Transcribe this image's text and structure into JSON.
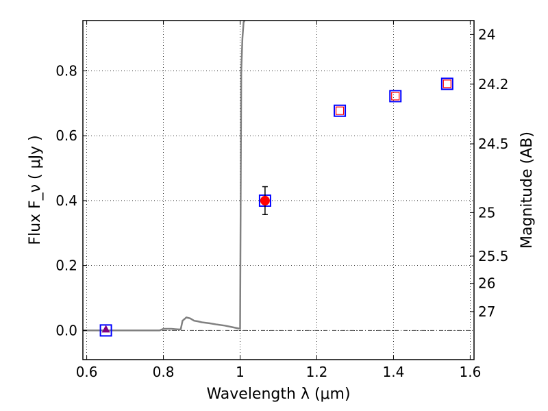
{
  "chart_data": {
    "type": "scatter",
    "xlabel": "Wavelength  λ (μm)",
    "ylabel": "Flux  F_ν  ( μJy )",
    "ylabel_right": "Magnitude (AB)",
    "xlim": [
      0.59,
      1.61
    ],
    "ylim": [
      -0.09,
      0.955
    ],
    "grid": true,
    "x_ticks": [
      0.6,
      0.8,
      1.0,
      1.2,
      1.4,
      1.6
    ],
    "x_tick_labels": [
      "0.6",
      "0.8",
      "1",
      "1.2",
      "1.4",
      "1.6"
    ],
    "y_ticks": [
      0.0,
      0.2,
      0.4,
      0.6,
      0.8
    ],
    "y_tick_labels": [
      "0.0",
      "0.2",
      "0.4",
      "0.6",
      "0.8"
    ],
    "right_ticks": [
      {
        "label": "24",
        "flux": 0.912
      },
      {
        "label": "24.2",
        "flux": 0.759
      },
      {
        "label": "24.5",
        "flux": 0.575
      },
      {
        "label": "25",
        "flux": 0.363
      },
      {
        "label": "25.5",
        "flux": 0.229
      },
      {
        "label": "26",
        "flux": 0.145
      },
      {
        "label": "27",
        "flux": 0.058
      }
    ],
    "zero_line": 0.0,
    "sed_model": {
      "color": "#808080",
      "x": [
        0.59,
        0.65,
        0.7,
        0.75,
        0.79,
        0.8,
        0.82,
        0.84,
        0.845,
        0.85,
        0.86,
        0.87,
        0.88,
        0.89,
        0.9,
        0.92,
        0.94,
        0.96,
        0.98,
        1.0,
        1.003,
        1.006,
        1.009,
        1.012
      ],
      "y": [
        0.0,
        0.0,
        0.0,
        0.0,
        0.0,
        0.005,
        0.005,
        0.003,
        0.003,
        0.03,
        0.04,
        0.037,
        0.03,
        0.028,
        0.025,
        0.022,
        0.018,
        0.015,
        0.01,
        0.005,
        0.8,
        0.9,
        0.95,
        0.955
      ]
    },
    "series": [
      {
        "marker": "open-square",
        "color": "#0000ff",
        "points": [
          {
            "x": 0.65,
            "y": 0.0
          },
          {
            "x": 1.065,
            "y": 0.4
          },
          {
            "x": 1.26,
            "y": 0.677
          },
          {
            "x": 1.405,
            "y": 0.722
          },
          {
            "x": 1.54,
            "y": 0.76
          }
        ]
      },
      {
        "marker": "open-square-small",
        "color": "#ff0000",
        "points": [
          {
            "x": 1.26,
            "y": 0.677
          },
          {
            "x": 1.405,
            "y": 0.722
          },
          {
            "x": 1.54,
            "y": 0.76
          }
        ]
      },
      {
        "marker": "filled-circle",
        "color": "#ff0000",
        "points": [
          {
            "x": 1.065,
            "y": 0.4,
            "yerr": 0.043
          }
        ]
      },
      {
        "marker": "filled-triangle",
        "color": "#800080",
        "points": [
          {
            "x": 0.65,
            "y": 0.0
          }
        ]
      }
    ]
  }
}
